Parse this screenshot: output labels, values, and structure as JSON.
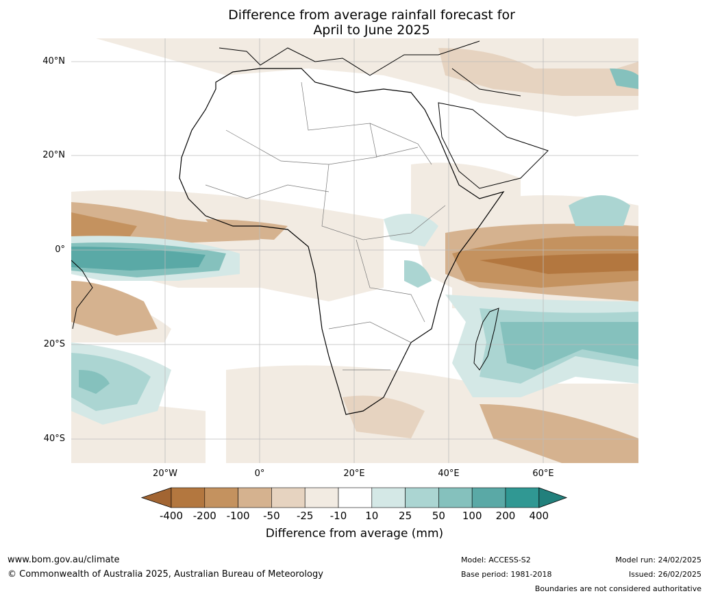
{
  "title": {
    "line1": "Difference from average rainfall forecast for",
    "line2": "April to June 2025"
  },
  "lat_labels": [
    "40°N",
    "20°N",
    "0°",
    "20°S",
    "40°S"
  ],
  "lon_labels": [
    "20°W",
    "0°",
    "20°E",
    "40°E",
    "60°E"
  ],
  "colorbar": {
    "labels": [
      "-400",
      "-200",
      "-100",
      "-50",
      "-25",
      "-10",
      "10",
      "25",
      "50",
      "100",
      "200",
      "400"
    ],
    "colors": [
      "#a26532",
      "#b3773f",
      "#c4925f",
      "#d5b28f",
      "#e6d3c0",
      "#f2ebe2",
      "#ffffff",
      "#d4e8e6",
      "#abd5d2",
      "#85c1bd",
      "#5aa9a6",
      "#309893",
      "#22807c"
    ],
    "title": "Difference from average (mm)"
  },
  "footer": {
    "url": "www.bom.gov.au/climate",
    "copyright": "© Commonwealth of Australia 2025, Australian Bureau of Meteorology",
    "model": "Model: ACCESS-S2",
    "base_period": "Base period: 1981-2018",
    "model_run": "Model run: 24/02/2025",
    "issued": "Issued: 26/02/2025",
    "boundaries": "Boundaries are not considered authoritative"
  }
}
